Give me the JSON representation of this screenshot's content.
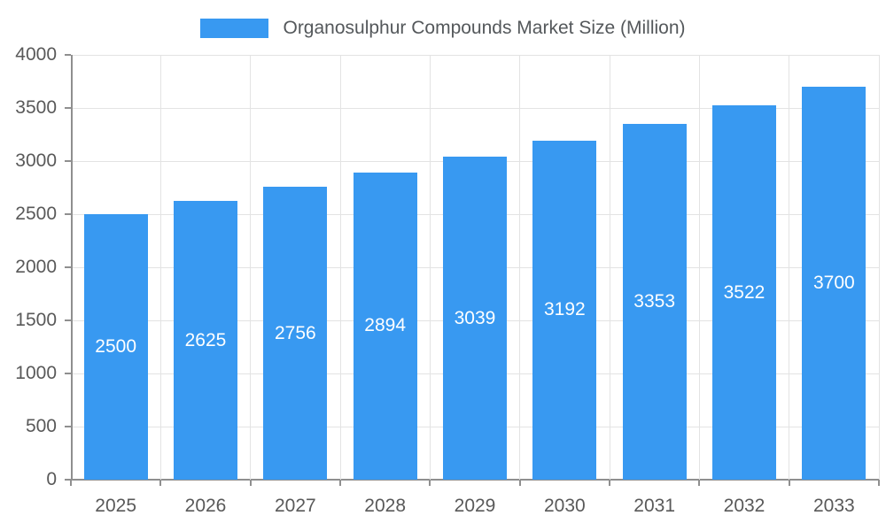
{
  "chart_data": {
    "type": "bar",
    "title": "Organosulphur Compounds Market Size (Million)",
    "categories": [
      "2025",
      "2026",
      "2027",
      "2028",
      "2029",
      "2030",
      "2031",
      "2032",
      "2033"
    ],
    "values": [
      2500,
      2625,
      2756,
      2894,
      3039,
      3192,
      3353,
      3522,
      3700
    ],
    "xlabel": "",
    "ylabel": "",
    "ylim": [
      0,
      4000
    ],
    "yticks": [
      0,
      500,
      1000,
      1500,
      2000,
      2500,
      3000,
      3500,
      4000
    ],
    "grid": true,
    "legend_position": "top-center",
    "value_labels": "inside-center",
    "colors": {
      "bar": "#3899F1",
      "label": "#FFFFFF",
      "axis_text": "#595959",
      "title_text": "#54585B",
      "grid": "#E3E3E3",
      "axis_line": "#8F8F8F",
      "background": "#FFFFFF"
    }
  }
}
